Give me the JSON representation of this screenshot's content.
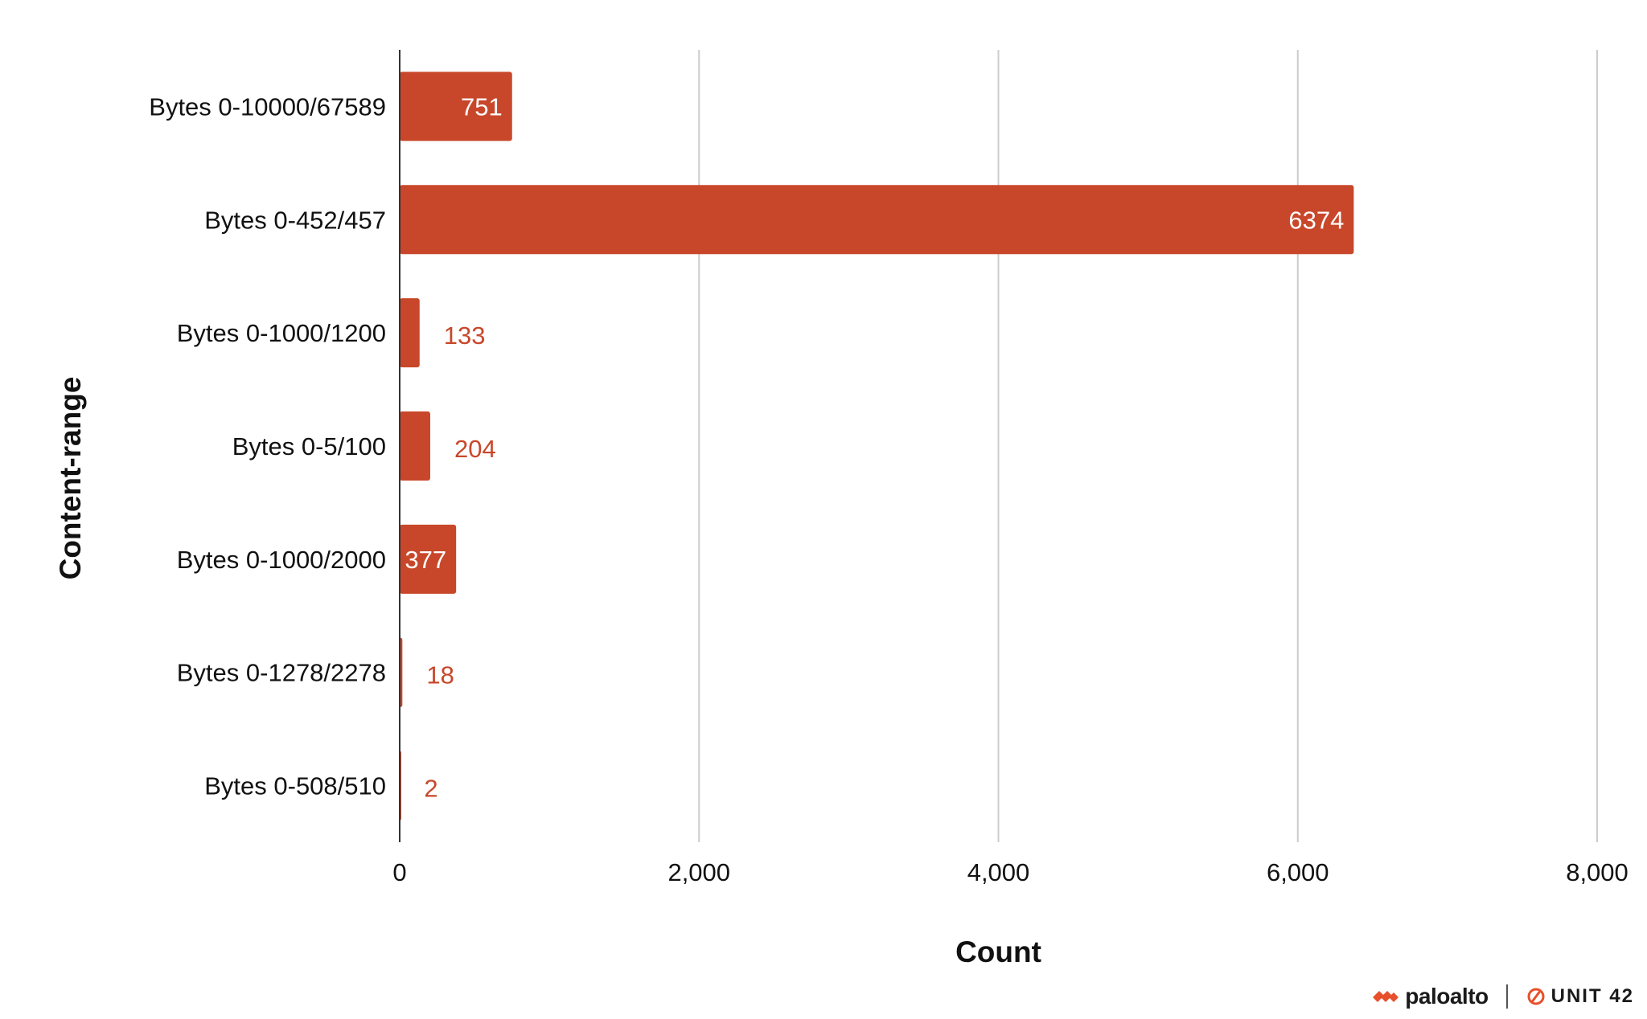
{
  "chart_data": {
    "type": "bar",
    "orientation": "horizontal",
    "categories": [
      "Bytes 0-10000/67589",
      "Bytes 0-452/457",
      "Bytes 0-1000/1200",
      "Bytes 0-5/100",
      "Bytes 0-1000/2000",
      "Bytes 0-1278/2278",
      "Bytes 0-508/510"
    ],
    "values": [
      751,
      6374,
      133,
      204,
      377,
      18,
      2
    ],
    "value_labels": [
      "751",
      "6374",
      "133",
      "204",
      "377",
      "18",
      "2"
    ],
    "xlabel": "Count",
    "ylabel": "Content-range",
    "xlim": [
      0,
      8000
    ],
    "x_ticks": [
      0,
      2000,
      4000,
      6000,
      8000
    ],
    "x_tick_labels": [
      "0",
      "2,000",
      "4,000",
      "6,000",
      "8,000"
    ],
    "grid": "vertical",
    "bar_color": "#c8472a"
  },
  "footer": {
    "paloalto_label": "paloalto",
    "unit42_label": "UNIT 42",
    "paloalto_icon": "paloalto-logo-icon",
    "unit42_icon": "unit42-logo-icon"
  }
}
